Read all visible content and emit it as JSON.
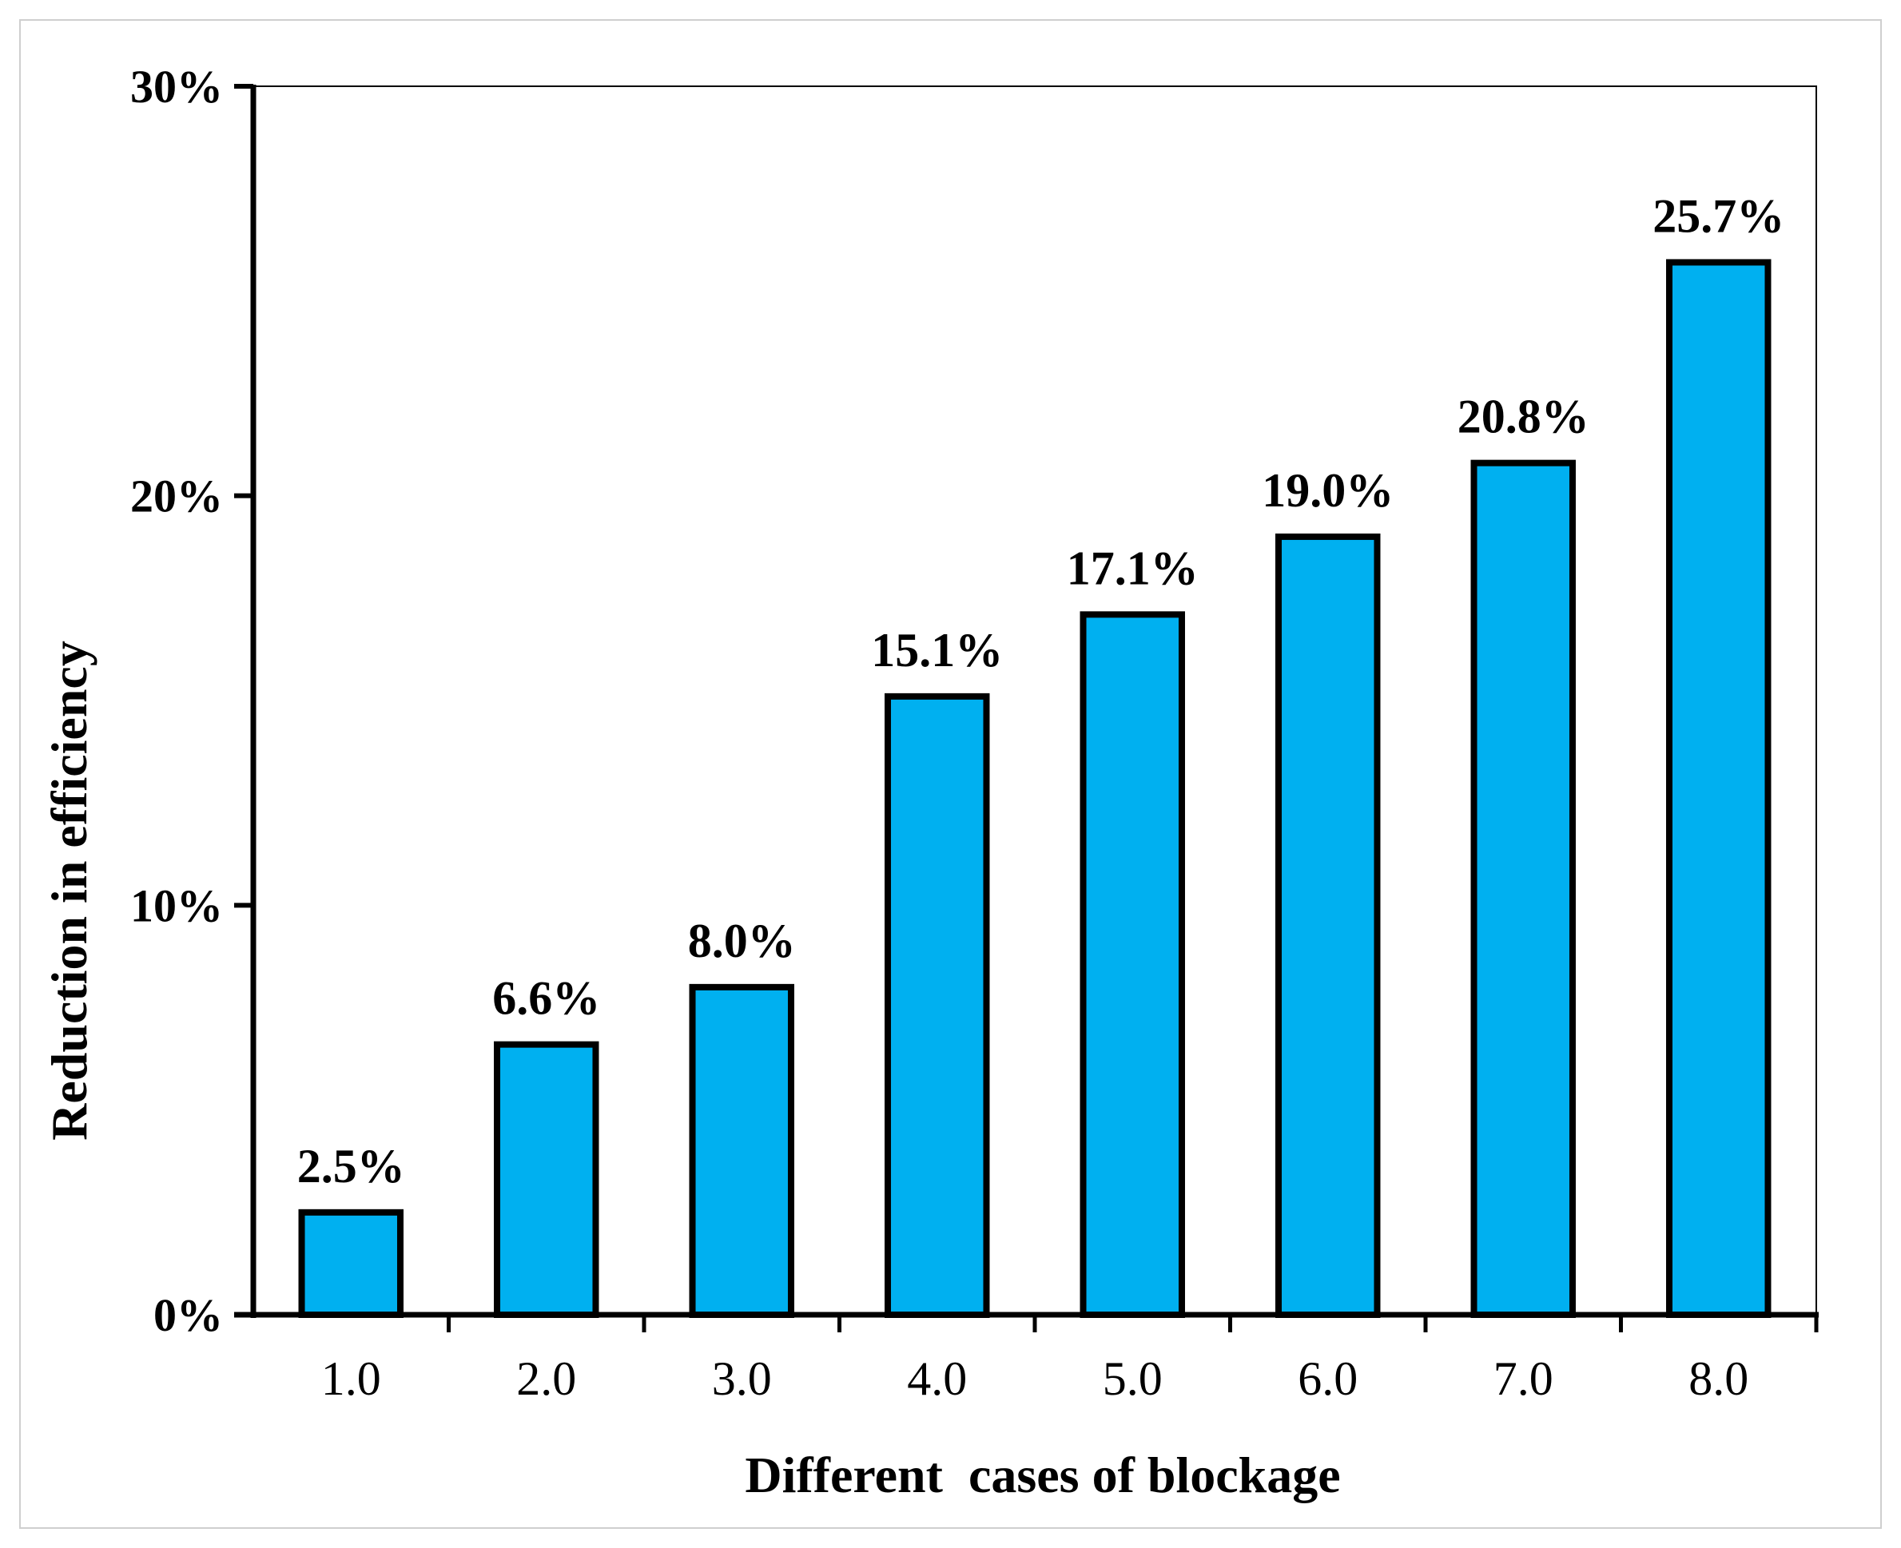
{
  "chart_data": {
    "type": "bar",
    "title": "",
    "xlabel": "Different  cases of blockage",
    "ylabel": "Reduction in efficiency",
    "categories": [
      "1.0",
      "2.0",
      "3.0",
      "4.0",
      "5.0",
      "6.0",
      "7.0",
      "8.0"
    ],
    "values": [
      2.5,
      6.6,
      8.0,
      15.1,
      17.1,
      19.0,
      20.8,
      25.7
    ],
    "data_labels": [
      "2.5%",
      "6.6%",
      "8.0%",
      "15.1%",
      "17.1%",
      "19.0%",
      "20.8%",
      "25.7%"
    ],
    "ylim": [
      0,
      30
    ],
    "yticks": [
      0,
      10,
      20,
      30
    ],
    "ytick_labels": [
      "0%",
      "10%",
      "20%",
      "30%"
    ],
    "grid": false,
    "legend": "none",
    "bar_color": "#00B0F0",
    "bar_edge_color": "#000000"
  }
}
